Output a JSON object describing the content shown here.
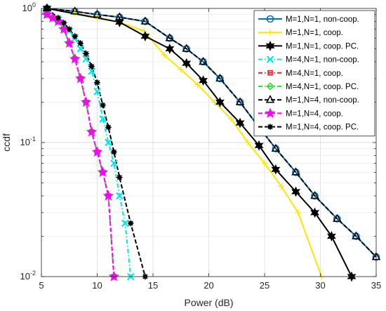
{
  "chart_data": {
    "type": "line",
    "xlabel": "Power (dB)",
    "ylabel": "ccdf",
    "xlim": [
      5,
      35
    ],
    "ylim": [
      0.01,
      1
    ],
    "yscale": "log",
    "grid": true,
    "legend_position": "top-right",
    "x_ticks": [
      "5",
      "10",
      "15",
      "20",
      "25",
      "30",
      "35"
    ],
    "y_tick_labels": [
      {
        "base": "10",
        "exp": "-2"
      },
      {
        "base": "10",
        "exp": "-1"
      },
      {
        "base": "10",
        "exp": "0"
      }
    ],
    "series": [
      {
        "name": "M=1,N=1, non-coop.",
        "color": "#0072BD",
        "dash": "solid",
        "marker": "circle",
        "x": [
          5.5,
          8.0,
          10.0,
          12.0,
          14.3,
          16.5,
          18.0,
          19.5,
          21.0,
          22.8,
          24.5,
          26.0,
          27.8,
          29.5,
          31.5,
          33.2,
          35.0
        ],
        "y": [
          1.0,
          0.95,
          0.9,
          0.86,
          0.8,
          0.6,
          0.5,
          0.4,
          0.3,
          0.2,
          0.13,
          0.09,
          0.06,
          0.04,
          0.027,
          0.02,
          0.014
        ]
      },
      {
        "name": "M=1,N=1, coop.",
        "color": "#FFE600",
        "dash": "solid",
        "marker": "plus",
        "x": [
          5.5,
          8.0,
          10.0,
          12.0,
          14.2,
          16.0,
          17.5,
          19.0,
          20.5,
          22.0,
          23.5,
          25.0,
          26.5,
          28.0,
          30.1
        ],
        "y": [
          1.0,
          0.92,
          0.86,
          0.79,
          0.68,
          0.45,
          0.35,
          0.27,
          0.2,
          0.15,
          0.1,
          0.07,
          0.047,
          0.03,
          0.01
        ]
      },
      {
        "name": "M=1,N=1, coop. PC.",
        "color": "#000000",
        "dash": "solid",
        "marker": "hexagram",
        "x": [
          5.5,
          12.0,
          14.3,
          16.5,
          18.0,
          19.5,
          21.0,
          22.8,
          24.5,
          26.0,
          27.8,
          29.5,
          31.0,
          32.8
        ],
        "y": [
          1.0,
          0.79,
          0.62,
          0.5,
          0.39,
          0.29,
          0.2,
          0.14,
          0.095,
          0.063,
          0.043,
          0.03,
          0.02,
          0.01
        ]
      },
      {
        "name": "M=4,N=1, non-coop.",
        "color": "#00E5E5",
        "dash": "dashdot",
        "marker": "x",
        "x": [
          5.5,
          6.5,
          7.0,
          7.5,
          8.0,
          8.5,
          9.0,
          9.5,
          10.0,
          10.5,
          11.0,
          11.5,
          12.0,
          12.5,
          13.0
        ],
        "y": [
          0.9,
          0.82,
          0.75,
          0.68,
          0.6,
          0.5,
          0.42,
          0.34,
          0.24,
          0.15,
          0.1,
          0.07,
          0.04,
          0.025,
          0.01
        ]
      },
      {
        "name": "M=4,N=1, coop.",
        "color": "#E62020",
        "dash": "dashdot",
        "marker": "square",
        "x": [
          5.5,
          6.0,
          6.5,
          7.0,
          7.5,
          8.0,
          8.5,
          9.0,
          9.5,
          10.0,
          10.5,
          11.0,
          11.5
        ],
        "y": [
          0.9,
          0.85,
          0.8,
          0.7,
          0.55,
          0.42,
          0.3,
          0.2,
          0.12,
          0.085,
          0.06,
          0.04,
          0.01
        ]
      },
      {
        "name": "M=4,N=1, coop. PC.",
        "color": "#33DD33",
        "dash": "dashdot",
        "marker": "diamond",
        "x": [
          5.5,
          6.0,
          6.5,
          7.0,
          7.5,
          8.0,
          8.5,
          9.0,
          9.5,
          10.0,
          10.5,
          11.0,
          11.5
        ],
        "y": [
          0.9,
          0.85,
          0.8,
          0.7,
          0.55,
          0.42,
          0.3,
          0.2,
          0.12,
          0.085,
          0.06,
          0.04,
          0.01
        ]
      },
      {
        "name": "M=1,N=4, non-coop.",
        "color": "#000000",
        "dash": "dashed",
        "marker": "triangle",
        "x": [
          5.5,
          8.0,
          10.0,
          12.0,
          14.3,
          16.5,
          18.0,
          19.5,
          21.0,
          22.8,
          24.5,
          26.0,
          27.8,
          29.5,
          31.5,
          33.2,
          35.0
        ],
        "y": [
          1.0,
          0.95,
          0.9,
          0.86,
          0.8,
          0.6,
          0.5,
          0.4,
          0.3,
          0.2,
          0.13,
          0.09,
          0.06,
          0.04,
          0.027,
          0.02,
          0.014
        ]
      },
      {
        "name": "M=1,N=4, coop.",
        "color": "#FF00FF",
        "dash": "dashed",
        "marker": "pentagram",
        "x": [
          5.5,
          6.0,
          6.5,
          7.0,
          7.5,
          8.0,
          8.5,
          9.0,
          9.5,
          10.0,
          10.5,
          11.0,
          11.5
        ],
        "y": [
          0.9,
          0.85,
          0.8,
          0.7,
          0.55,
          0.42,
          0.3,
          0.2,
          0.12,
          0.085,
          0.06,
          0.04,
          0.01
        ]
      },
      {
        "name": "M=1,N=4, coop. PC.",
        "color": "#000000",
        "dash": "dashed",
        "marker": "star-dot",
        "x": [
          5.5,
          6.5,
          7.0,
          7.5,
          8.0,
          8.5,
          9.0,
          9.5,
          10.0,
          10.5,
          11.0,
          11.5,
          12.0,
          13.0,
          14.3
        ],
        "y": [
          1.0,
          0.85,
          0.78,
          0.7,
          0.62,
          0.55,
          0.46,
          0.37,
          0.28,
          0.19,
          0.13,
          0.085,
          0.055,
          0.025,
          0.01
        ]
      }
    ]
  }
}
